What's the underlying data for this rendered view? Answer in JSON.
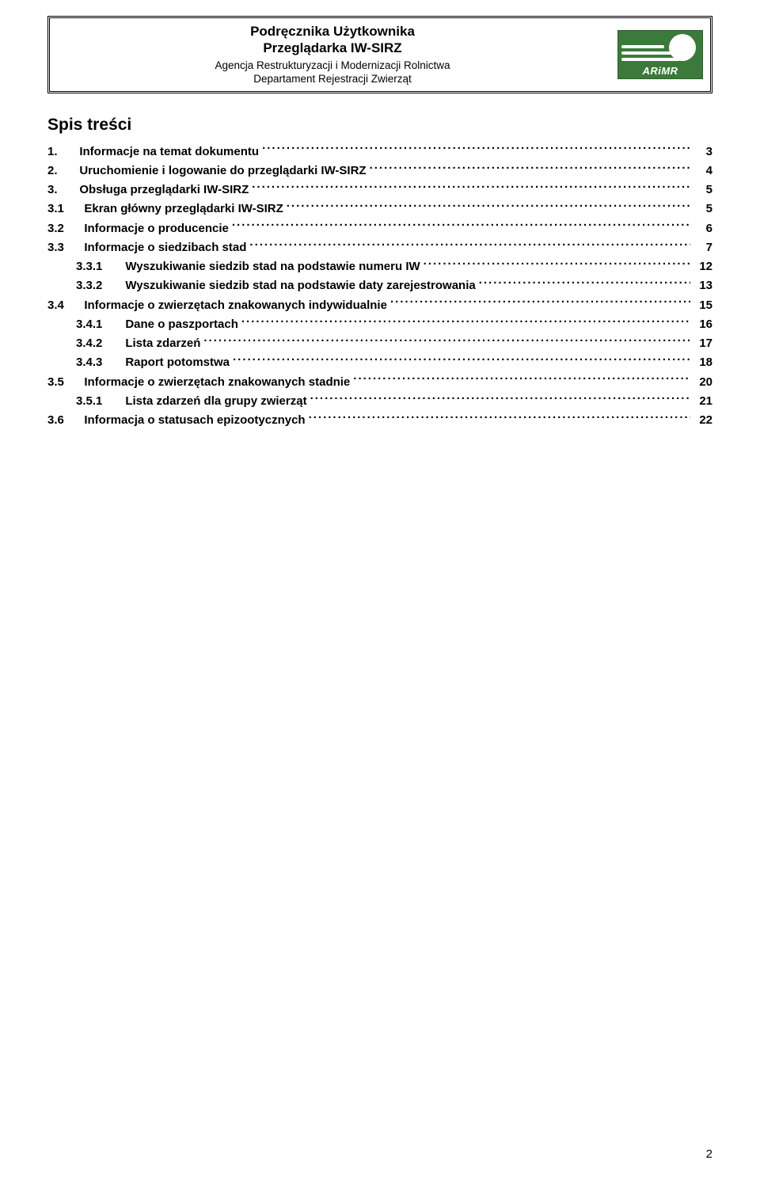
{
  "header": {
    "title1": "Podręcznika Użytkownika",
    "title2": "Przeglądarka IW-SIRZ",
    "sub1": "Agencja Restrukturyzacji i Modernizacji Rolnictwa",
    "sub2": "Departament Rejestracji Zwierząt",
    "logo_brand": "ARiMR",
    "logo_bg": "#3b7a3a"
  },
  "toc": {
    "title": "Spis treści",
    "entries": [
      {
        "level": 1,
        "num": "1.",
        "label": "Informacje na temat dokumentu",
        "page": "3"
      },
      {
        "level": 1,
        "num": "2.",
        "label": "Uruchomienie i logowanie do przeglądarki IW-SIRZ",
        "page": "4"
      },
      {
        "level": 1,
        "num": "3.",
        "label": "Obsługa przeglądarki IW-SIRZ",
        "page": "5"
      },
      {
        "level": 2,
        "num": "3.1",
        "label": "Ekran główny przeglądarki IW-SIRZ",
        "page": "5"
      },
      {
        "level": 2,
        "num": "3.2",
        "label": "Informacje o producencie",
        "page": "6"
      },
      {
        "level": 2,
        "num": "3.3",
        "label": "Informacje o siedzibach stad",
        "page": "7"
      },
      {
        "level": 3,
        "num": "3.3.1",
        "label": "Wyszukiwanie siedzib stad na podstawie numeru IW",
        "page": "12"
      },
      {
        "level": 3,
        "num": "3.3.2",
        "label": "Wyszukiwanie siedzib stad na podstawie daty zarejestrowania",
        "page": "13"
      },
      {
        "level": 2,
        "num": "3.4",
        "label": "Informacje o zwierzętach znakowanych indywidualnie",
        "page": "15"
      },
      {
        "level": 3,
        "num": "3.4.1",
        "label": "Dane o paszportach",
        "page": "16"
      },
      {
        "level": 3,
        "num": "3.4.2",
        "label": "Lista zdarzeń",
        "page": "17"
      },
      {
        "level": 3,
        "num": "3.4.3",
        "label": "Raport potomstwa",
        "page": "18"
      },
      {
        "level": 2,
        "num": "3.5",
        "label": "Informacje o zwierzętach znakowanych stadnie",
        "page": "20"
      },
      {
        "level": 3,
        "num": "3.5.1",
        "label": "Lista zdarzeń dla grupy zwierząt",
        "page": "21"
      },
      {
        "level": 2,
        "num": "3.6",
        "label": "Informacja o statusach epizootycznych",
        "page": "22"
      }
    ]
  },
  "page_number": "2"
}
